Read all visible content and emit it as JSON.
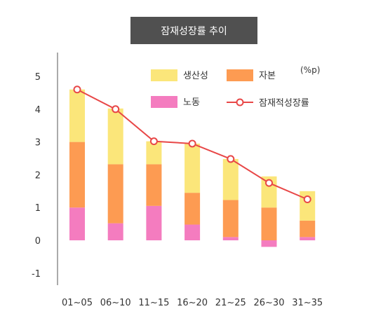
{
  "chart_data": {
    "type": "bar",
    "title": "잠재성장률 추이",
    "unit": "(%p)",
    "categories": [
      "01~05",
      "06~10",
      "11~15",
      "16~20",
      "21~25",
      "26~30",
      "31~35"
    ],
    "series": [
      {
        "name": "노동",
        "color": "#f47cbf",
        "values": [
          1.0,
          0.52,
          1.05,
          0.48,
          0.1,
          -0.2,
          0.1
        ]
      },
      {
        "name": "자본",
        "color": "#fd9b52",
        "values": [
          2.0,
          1.8,
          1.27,
          0.97,
          1.13,
          1.0,
          0.5
        ]
      },
      {
        "name": "생산성",
        "color": "#fbe67a",
        "values": [
          1.6,
          1.7,
          0.7,
          1.5,
          1.25,
          0.95,
          0.9
        ]
      },
      {
        "name": "잠재적성장률",
        "type": "line",
        "color": "#e84747",
        "values": [
          4.6,
          4.0,
          3.02,
          2.95,
          2.48,
          1.75,
          1.25
        ]
      }
    ],
    "ylim": [
      -1.3,
      5.5
    ],
    "yticks": [
      -1,
      0,
      1,
      2,
      3,
      4,
      5
    ],
    "grid": false,
    "legend": "top-right"
  }
}
